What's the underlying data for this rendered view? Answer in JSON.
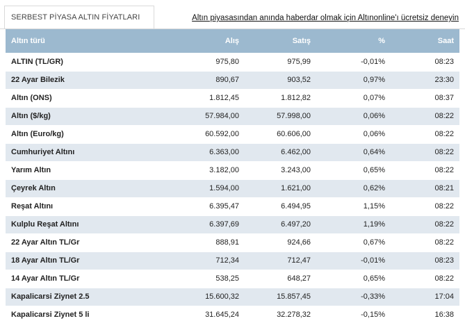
{
  "header": {
    "tab_label": "SERBEST PİYASA ALTIN FİYATLARI",
    "promo_link": "Altın piyasasından anında haberdar olmak için Altınonline'ı ücretsiz deneyin"
  },
  "table": {
    "columns": [
      "Altın türü",
      "Alış",
      "Satış",
      "%",
      "Saat"
    ],
    "rows": [
      [
        "ALTIN (TL/GR)",
        "975,80",
        "975,99",
        "-0,01%",
        "08:23"
      ],
      [
        "22 Ayar Bilezik",
        "890,67",
        "903,52",
        "0,97%",
        "23:30"
      ],
      [
        "Altın (ONS)",
        "1.812,45",
        "1.812,82",
        "0,07%",
        "08:37"
      ],
      [
        "Altın ($/kg)",
        "57.984,00",
        "57.998,00",
        "0,06%",
        "08:22"
      ],
      [
        "Altın (Euro/kg)",
        "60.592,00",
        "60.606,00",
        "0,06%",
        "08:22"
      ],
      [
        "Cumhuriyet Altını",
        "6.363,00",
        "6.462,00",
        "0,64%",
        "08:22"
      ],
      [
        "Yarım Altın",
        "3.182,00",
        "3.243,00",
        "0,65%",
        "08:22"
      ],
      [
        "Çeyrek Altın",
        "1.594,00",
        "1.621,00",
        "0,62%",
        "08:21"
      ],
      [
        "Reşat Altını",
        "6.395,47",
        "6.494,95",
        "1,15%",
        "08:22"
      ],
      [
        "Kulplu Reşat Altını",
        "6.397,69",
        "6.497,20",
        "1,19%",
        "08:22"
      ],
      [
        "22 Ayar Altın TL/Gr",
        "888,91",
        "924,66",
        "0,67%",
        "08:22"
      ],
      [
        "18 Ayar Altın TL/Gr",
        "712,34",
        "712,47",
        "-0,01%",
        "08:23"
      ],
      [
        "14 Ayar Altın TL/Gr",
        "538,25",
        "648,27",
        "0,65%",
        "08:22"
      ],
      [
        "Kapalicarsi Ziynet 2.5",
        "15.600,32",
        "15.857,45",
        "-0,33%",
        "17:04"
      ],
      [
        "Kapalicarsi Ziynet 5 li",
        "31.645,24",
        "32.278,32",
        "-0,15%",
        "16:38"
      ]
    ]
  }
}
